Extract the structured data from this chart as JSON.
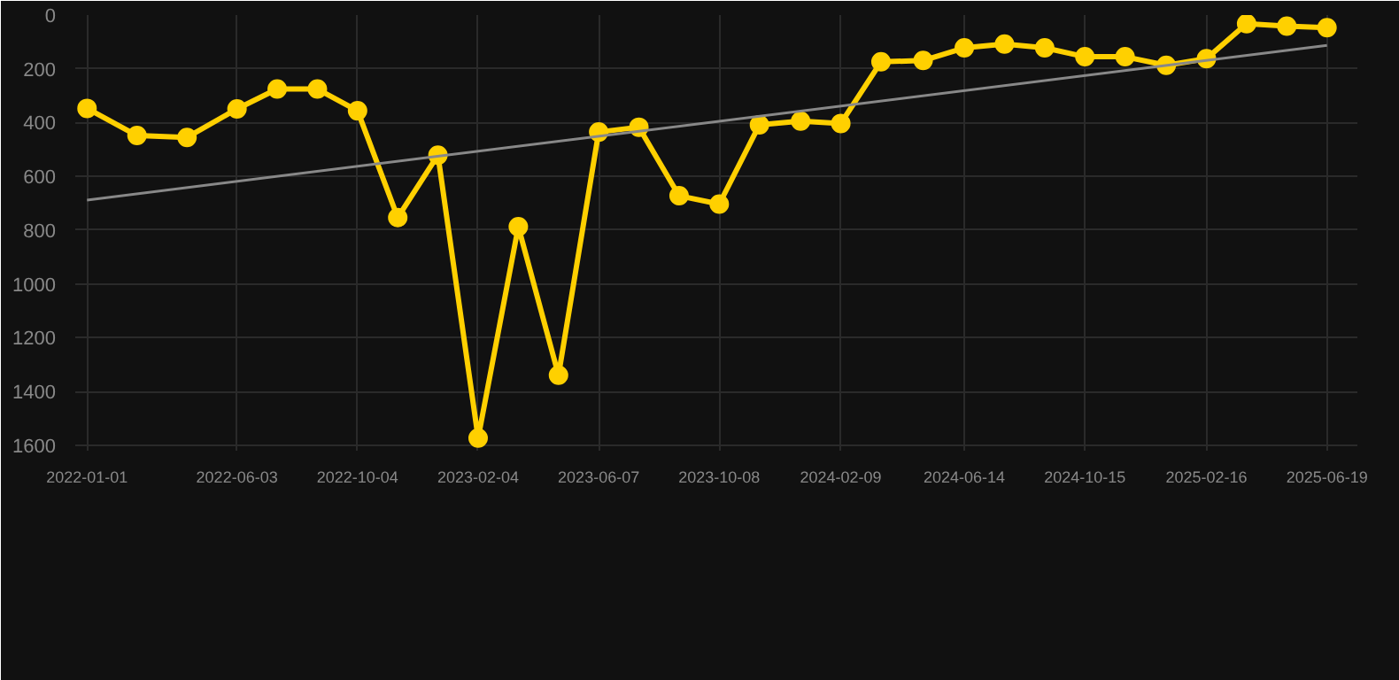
{
  "chart_data": {
    "type": "line",
    "x": [
      "2022-01-01",
      "2022-02-21",
      "2022-04-13",
      "2022-06-03",
      "2022-07-14",
      "2022-08-24",
      "2022-10-04",
      "2022-11-14",
      "2022-12-25",
      "2023-02-04",
      "2023-03-17",
      "2023-04-27",
      "2023-06-07",
      "2023-07-18",
      "2023-08-28",
      "2023-10-08",
      "2023-11-18",
      "2023-12-30",
      "2024-02-09",
      "2024-03-21",
      "2024-05-03",
      "2024-06-14",
      "2024-07-25",
      "2024-09-04",
      "2024-10-15",
      "2024-11-25",
      "2025-01-06",
      "2025-02-16",
      "2025-03-29",
      "2025-05-09",
      "2025-06-19"
    ],
    "series": [
      {
        "color": "#ffd000",
        "marker": "circle",
        "values": [
          347,
          448,
          455,
          349,
          275,
          275,
          356,
          753,
          521,
          1573,
          787,
          1339,
          435,
          417,
          672,
          703,
          408,
          394,
          403,
          174,
          169,
          122,
          108,
          122,
          155,
          155,
          187,
          162,
          32,
          41,
          47
        ]
      },
      {
        "type": "line",
        "color": "#888888",
        "marker": "none",
        "x": [
          "2022-01-01",
          "2025-06-19"
        ],
        "values": [
          688,
          113
        ]
      }
    ],
    "xlim": [
      "2021-12-20",
      "2025-07-20"
    ],
    "ylim": [
      1620,
      0
    ],
    "xticks": [
      "2022-01-01",
      "2022-06-03",
      "2022-10-04",
      "2023-02-04",
      "2023-06-07",
      "2023-10-08",
      "2024-02-09",
      "2024-06-14",
      "2024-10-15",
      "2025-02-16",
      "2025-06-19"
    ],
    "yticks": [
      0,
      200,
      400,
      600,
      800,
      1000,
      1200,
      1400,
      1600
    ],
    "grid": true,
    "line_style": "solid"
  }
}
